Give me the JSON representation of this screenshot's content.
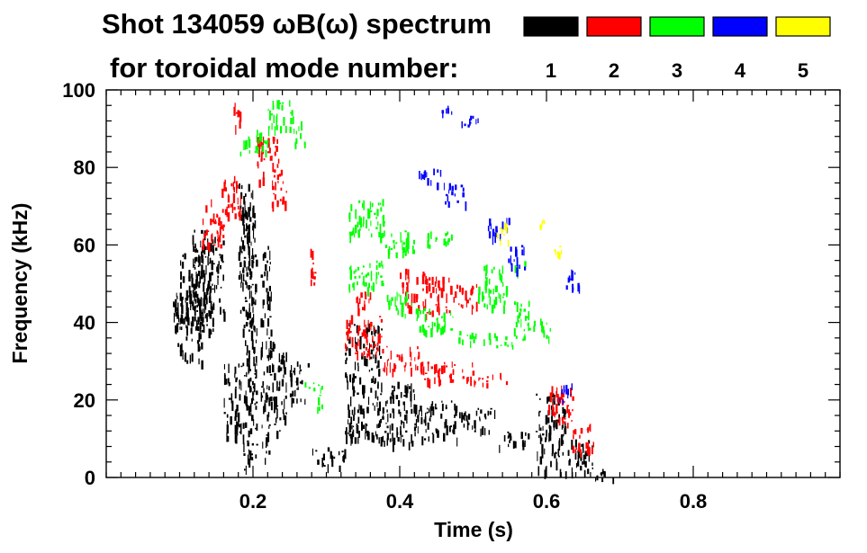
{
  "chart_data": {
    "type": "spectrogram",
    "title_line1": "Shot 134059 ωB(ω) spectrum",
    "title_line2": "for toroidal mode number:",
    "xlabel": "Time (s)",
    "ylabel": "Frequency (kHz)",
    "xlim": [
      0.0,
      1.0
    ],
    "ylim": [
      0,
      100
    ],
    "x_ticks": [
      0.2,
      0.4,
      0.6,
      0.8
    ],
    "x_tick_labels": [
      "0.2",
      "0.4",
      "0.6",
      "0.8"
    ],
    "y_ticks": [
      0,
      20,
      40,
      60,
      80,
      100
    ],
    "y_tick_labels": [
      "0",
      "20",
      "40",
      "60",
      "80",
      "100"
    ],
    "grid": false,
    "legend": [
      {
        "label": "1",
        "color": "#000000"
      },
      {
        "label": "2",
        "color": "#ff0000"
      },
      {
        "label": "3",
        "color": "#00ff00"
      },
      {
        "label": "4",
        "color": "#0000ff"
      },
      {
        "label": "5",
        "color": "#ffff00"
      }
    ],
    "series": [
      {
        "label": "1",
        "color": "#000000",
        "blobs": [
          [
            0.09,
            0.135,
            30,
            48
          ],
          [
            0.1,
            0.145,
            38,
            58
          ],
          [
            0.115,
            0.16,
            42,
            64
          ],
          [
            0.16,
            0.185,
            10,
            30
          ],
          [
            0.18,
            0.2,
            40,
            76
          ],
          [
            0.185,
            0.205,
            2,
            70
          ],
          [
            0.21,
            0.225,
            5,
            60
          ],
          [
            0.225,
            0.245,
            12,
            35
          ],
          [
            0.25,
            0.275,
            20,
            30
          ],
          [
            0.28,
            0.325,
            3,
            8
          ],
          [
            0.325,
            0.375,
            10,
            40
          ],
          [
            0.375,
            0.42,
            9,
            25
          ],
          [
            0.42,
            0.48,
            10,
            20
          ],
          [
            0.48,
            0.53,
            12,
            18
          ],
          [
            0.53,
            0.575,
            8,
            12
          ],
          [
            0.585,
            0.625,
            2,
            22
          ],
          [
            0.625,
            0.665,
            1,
            10
          ],
          [
            0.665,
            0.69,
            0,
            3
          ]
        ]
      },
      {
        "label": "2",
        "color": "#ff0000",
        "blobs": [
          [
            0.13,
            0.16,
            60,
            72
          ],
          [
            0.155,
            0.185,
            68,
            78
          ],
          [
            0.17,
            0.182,
            90,
            97
          ],
          [
            0.205,
            0.235,
            76,
            88
          ],
          [
            0.225,
            0.245,
            70,
            80
          ],
          [
            0.275,
            0.285,
            50,
            60
          ],
          [
            0.325,
            0.375,
            32,
            42
          ],
          [
            0.375,
            0.43,
            28,
            34
          ],
          [
            0.43,
            0.5,
            25,
            30
          ],
          [
            0.5,
            0.545,
            24,
            27
          ],
          [
            0.4,
            0.435,
            44,
            54
          ],
          [
            0.435,
            0.47,
            42,
            52
          ],
          [
            0.47,
            0.505,
            44,
            50
          ],
          [
            0.6,
            0.635,
            14,
            24
          ],
          [
            0.635,
            0.665,
            6,
            14
          ],
          [
            0.34,
            0.36,
            38,
            48
          ]
        ]
      },
      {
        "label": "3",
        "color": "#00ff00",
        "blobs": [
          [
            0.18,
            0.22,
            84,
            90
          ],
          [
            0.22,
            0.255,
            90,
            98
          ],
          [
            0.255,
            0.27,
            86,
            92
          ],
          [
            0.33,
            0.38,
            62,
            72
          ],
          [
            0.38,
            0.43,
            58,
            64
          ],
          [
            0.43,
            0.47,
            60,
            64
          ],
          [
            0.33,
            0.38,
            48,
            56
          ],
          [
            0.38,
            0.42,
            42,
            48
          ],
          [
            0.42,
            0.48,
            38,
            44
          ],
          [
            0.48,
            0.53,
            35,
            38
          ],
          [
            0.53,
            0.57,
            34,
            37
          ],
          [
            0.505,
            0.545,
            44,
            55
          ],
          [
            0.555,
            0.585,
            38,
            46
          ],
          [
            0.59,
            0.605,
            35,
            42
          ],
          [
            0.27,
            0.305,
            23,
            25
          ],
          [
            0.285,
            0.295,
            18,
            22
          ],
          [
            0.555,
            0.57,
            52,
            56
          ]
        ]
      },
      {
        "label": "4",
        "color": "#0000ff",
        "blobs": [
          [
            0.425,
            0.46,
            76,
            80
          ],
          [
            0.46,
            0.49,
            71,
            76
          ],
          [
            0.45,
            0.48,
            94,
            96
          ],
          [
            0.48,
            0.51,
            91,
            94
          ],
          [
            0.52,
            0.55,
            62,
            67
          ],
          [
            0.545,
            0.57,
            54,
            60
          ],
          [
            0.615,
            0.635,
            20,
            25
          ],
          [
            0.625,
            0.645,
            48,
            54
          ]
        ]
      },
      {
        "label": "5",
        "color": "#ffff00",
        "blobs": [
          [
            0.53,
            0.55,
            61,
            66
          ],
          [
            0.59,
            0.6,
            64,
            67
          ],
          [
            0.61,
            0.62,
            57,
            60
          ]
        ]
      }
    ]
  }
}
